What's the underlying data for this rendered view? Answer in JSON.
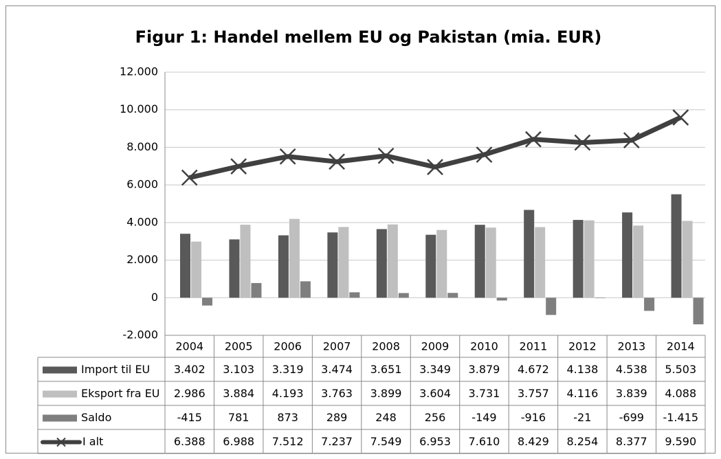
{
  "chart_data": {
    "type": "bar",
    "title": "Figur 1: Handel mellem EU og Pakistan (mia. EUR)",
    "categories": [
      "2004",
      "2005",
      "2006",
      "2007",
      "2008",
      "2009",
      "2010",
      "2011",
      "2012",
      "2013",
      "2014"
    ],
    "series": [
      {
        "name": "Import til EU",
        "type": "bar",
        "color": "#595959",
        "values": [
          3402,
          3103,
          3319,
          3474,
          3651,
          3349,
          3879,
          4672,
          4138,
          4538,
          5503
        ],
        "value_labels": [
          "3.402",
          "3.103",
          "3.319",
          "3.474",
          "3.651",
          "3.349",
          "3.879",
          "4.672",
          "4.138",
          "4.538",
          "5.503"
        ]
      },
      {
        "name": "Eksport fra EU",
        "type": "bar",
        "color": "#bfbfbf",
        "values": [
          2986,
          3884,
          4193,
          3763,
          3899,
          3604,
          3731,
          3757,
          4116,
          3839,
          4088
        ],
        "value_labels": [
          "2.986",
          "3.884",
          "4.193",
          "3.763",
          "3.899",
          "3.604",
          "3.731",
          "3.757",
          "4.116",
          "3.839",
          "4.088"
        ]
      },
      {
        "name": "Saldo",
        "type": "bar",
        "color": "#7f7f7f",
        "values": [
          -415,
          781,
          873,
          289,
          248,
          256,
          -149,
          -916,
          -21,
          -699,
          -1415
        ],
        "value_labels": [
          "-415",
          "781",
          "873",
          "289",
          "248",
          "256",
          "-149",
          "-916",
          "-21",
          "-699",
          "-1.415"
        ]
      },
      {
        "name": "I alt",
        "type": "line",
        "color": "#404040",
        "values": [
          6388,
          6988,
          7512,
          7237,
          7549,
          6953,
          7610,
          8429,
          8254,
          8377,
          9590
        ],
        "value_labels": [
          "6.388",
          "6.988",
          "7.512",
          "7.237",
          "7.549",
          "6.953",
          "7.610",
          "8.429",
          "8.254",
          "8.377",
          "9.590"
        ]
      }
    ],
    "ylim": [
      -2000,
      12000
    ],
    "yticks": [
      {
        "value": -2000,
        "label": "-2.000"
      },
      0,
      {
        "value": 2000,
        "label": "2.000"
      },
      {
        "value": 4000,
        "label": "4.000"
      },
      {
        "value": 6000,
        "label": "6.000"
      },
      {
        "value": 8000,
        "label": "8.000"
      },
      {
        "value": 10000,
        "label": "10.000"
      },
      {
        "value": 12000,
        "label": "12.000"
      }
    ],
    "grid": true
  }
}
